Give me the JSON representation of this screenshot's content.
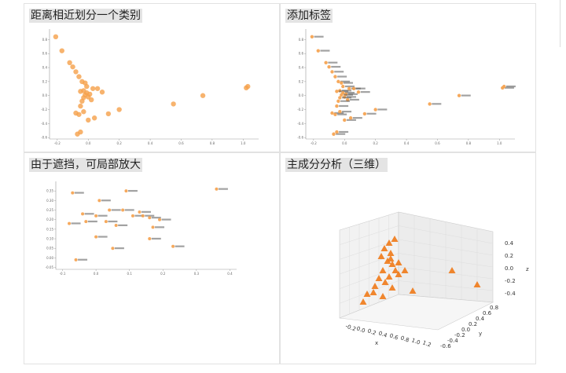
{
  "titles": {
    "p1": "距离相近划分一个类别",
    "p2": "添加标签",
    "p3": "由于遮挡，可局部放大",
    "p4": "主成分分析（三维）"
  },
  "colors": {
    "marker": "#f5a04a",
    "marker3d": "#f07a18",
    "axis": "#444444"
  },
  "chart_data": [
    {
      "type": "scatter",
      "title": "距离相近划分一个类别",
      "xlim": [
        -0.25,
        1.1
      ],
      "ylim": [
        -0.62,
        0.95
      ],
      "xticks": [
        "-0.2",
        "0.0",
        "0.2",
        "0.4",
        "0.6",
        "0.8",
        "1.0"
      ],
      "yticks": [
        "0.8",
        "0.6",
        "0.4",
        "0.2",
        "0.0",
        "-0.2",
        "-0.4",
        "-0.6"
      ],
      "points": [
        [
          -0.21,
          0.84
        ],
        [
          -0.17,
          0.64
        ],
        [
          -0.12,
          0.47
        ],
        [
          -0.1,
          0.41
        ],
        [
          -0.08,
          0.34
        ],
        [
          -0.06,
          0.27
        ],
        [
          -0.04,
          0.2
        ],
        [
          -0.02,
          0.18
        ],
        [
          -0.01,
          0.13
        ],
        [
          -0.03,
          0.07
        ],
        [
          -0.05,
          0.06
        ],
        [
          -0.01,
          0.04
        ],
        [
          0.01,
          0.02
        ],
        [
          -0.02,
          0.01
        ],
        [
          0.0,
          -0.02
        ],
        [
          -0.03,
          -0.03
        ],
        [
          0.02,
          -0.06
        ],
        [
          -0.04,
          -0.08
        ],
        [
          0.03,
          0.1
        ],
        [
          0.06,
          0.1
        ],
        [
          0.09,
          0.05
        ],
        [
          -0.05,
          -0.15
        ],
        [
          -0.08,
          -0.25
        ],
        [
          -0.06,
          -0.27
        ],
        [
          -0.03,
          -0.23
        ],
        [
          0.0,
          -0.35
        ],
        [
          -0.07,
          -0.55
        ],
        [
          -0.05,
          -0.52
        ],
        [
          0.04,
          -0.32
        ],
        [
          0.13,
          -0.26
        ],
        [
          0.2,
          -0.2
        ],
        [
          0.55,
          -0.12
        ],
        [
          0.74,
          0.0
        ],
        [
          1.02,
          0.11
        ],
        [
          1.03,
          0.13
        ]
      ]
    },
    {
      "type": "scatter",
      "title": "添加标签",
      "xlim": [
        -0.25,
        1.1
      ],
      "ylim": [
        -0.62,
        0.95
      ],
      "xticks": [
        "-0.2",
        "0.0",
        "0.2",
        "0.4",
        "0.6",
        "0.8",
        "1.0"
      ],
      "yticks": [
        "0.8",
        "0.6",
        "0.4",
        "0.2",
        "0.0",
        "-0.2",
        "-0.4",
        "-0.6"
      ],
      "points": [
        [
          -0.21,
          0.84
        ],
        [
          -0.17,
          0.64
        ],
        [
          -0.12,
          0.47
        ],
        [
          -0.1,
          0.41
        ],
        [
          -0.08,
          0.34
        ],
        [
          -0.06,
          0.27
        ],
        [
          -0.04,
          0.2
        ],
        [
          -0.02,
          0.18
        ],
        [
          -0.01,
          0.13
        ],
        [
          -0.03,
          0.07
        ],
        [
          -0.05,
          0.06
        ],
        [
          -0.01,
          0.04
        ],
        [
          0.01,
          0.02
        ],
        [
          -0.02,
          0.01
        ],
        [
          0.0,
          -0.02
        ],
        [
          -0.03,
          -0.03
        ],
        [
          0.02,
          -0.06
        ],
        [
          -0.04,
          -0.08
        ],
        [
          0.03,
          0.1
        ],
        [
          0.06,
          0.1
        ],
        [
          0.09,
          0.05
        ],
        [
          -0.05,
          -0.15
        ],
        [
          -0.08,
          -0.25
        ],
        [
          -0.06,
          -0.27
        ],
        [
          -0.03,
          -0.23
        ],
        [
          0.0,
          -0.35
        ],
        [
          -0.07,
          -0.55
        ],
        [
          -0.05,
          -0.52
        ],
        [
          0.04,
          -0.32
        ],
        [
          0.13,
          -0.26
        ],
        [
          0.2,
          -0.2
        ],
        [
          0.55,
          -0.12
        ],
        [
          0.74,
          0.0
        ],
        [
          1.02,
          0.11
        ],
        [
          1.03,
          0.13
        ]
      ],
      "labels": "illegible"
    },
    {
      "type": "scatter",
      "title": "由于遮挡，可局部放大",
      "xlim": [
        -0.12,
        0.42
      ],
      "ylim": [
        -0.06,
        0.4
      ],
      "xticks": [
        "-0.1",
        "0.0",
        "0.1",
        "0.2",
        "0.3",
        "0.4"
      ],
      "yticks": [
        "0.35",
        "0.30",
        "0.25",
        "0.20",
        "0.15",
        "0.10",
        "0.05",
        "0.00",
        "-0.05"
      ],
      "points": [
        [
          -0.07,
          0.34
        ],
        [
          0.01,
          0.3
        ],
        [
          0.09,
          0.35
        ],
        [
          0.36,
          0.36
        ],
        [
          -0.04,
          0.23
        ],
        [
          0.0,
          0.22
        ],
        [
          0.04,
          0.25
        ],
        [
          0.08,
          0.25
        ],
        [
          0.13,
          0.24
        ],
        [
          -0.08,
          0.18
        ],
        [
          -0.03,
          0.19
        ],
        [
          0.06,
          0.17
        ],
        [
          0.03,
          0.19
        ],
        [
          0.11,
          0.22
        ],
        [
          0.14,
          0.22
        ],
        [
          0.16,
          0.21
        ],
        [
          0.17,
          0.16
        ],
        [
          0.19,
          0.2
        ],
        [
          0.0,
          0.11
        ],
        [
          0.05,
          0.05
        ],
        [
          0.16,
          0.1
        ],
        [
          0.23,
          0.06
        ],
        [
          -0.06,
          -0.01
        ]
      ],
      "labels": "illegible"
    },
    {
      "type": "scatter",
      "title": "主成分分析（三维）",
      "xlabel": "x",
      "ylabel": "y",
      "zlabel": "z",
      "xticks": [
        "-0.2",
        "0.0",
        "0.2",
        "0.4",
        "0.6",
        "0.8",
        "1.0",
        "1.2"
      ],
      "yticks": [
        "-0.6",
        "-0.4",
        "-0.2",
        "0.0",
        "0.2",
        "0.4",
        "0.6",
        "0.8"
      ],
      "zticks": [
        "0.4",
        "0.2",
        "0.0",
        "-0.2",
        "-0.4"
      ],
      "marker": "triangle",
      "points_screen_approx": "cluster near x≈0, y≈0; outliers to right"
    }
  ]
}
